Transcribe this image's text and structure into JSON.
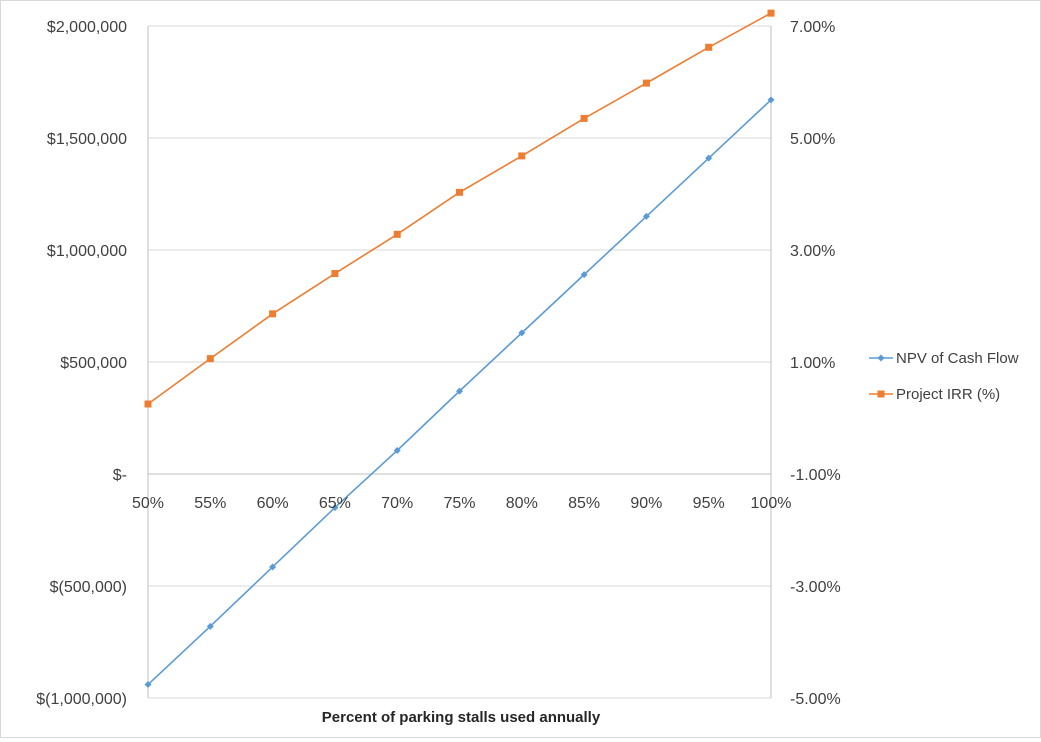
{
  "chart_data": {
    "type": "line",
    "title": "",
    "xlabel": "Percent of parking stalls used annually",
    "categories": [
      "50%",
      "55%",
      "60%",
      "65%",
      "70%",
      "75%",
      "80%",
      "85%",
      "90%",
      "95%",
      "100%"
    ],
    "y_left": {
      "min": -1000000,
      "max": 2000000,
      "step": 500000,
      "tick_labels": [
        "$(1,000,000)",
        "$(500,000)",
        "$-",
        "$500,000",
        "$1,000,000",
        "$1,500,000",
        "$2,000,000"
      ]
    },
    "y_right": {
      "min": -5,
      "max": 7,
      "step": 2,
      "top": 7.8,
      "tick_labels": [
        "-5.00%",
        "-3.00%",
        "-1.00%",
        "1.00%",
        "3.00%",
        "5.00%",
        "7.00%"
      ]
    },
    "series": [
      {
        "name": "NPV of Cash Flow",
        "axis": "left",
        "color": "#5b9bd5",
        "marker": "diamond",
        "values": [
          -940000,
          -680000,
          -415000,
          -150000,
          105000,
          370000,
          630000,
          890000,
          1150000,
          1410000,
          1670000
        ]
      },
      {
        "name": "Project IRR (%)",
        "axis": "right",
        "color": "#ed7d31",
        "marker": "square",
        "values": [
          0.25,
          1.06,
          1.86,
          2.58,
          3.28,
          4.03,
          4.68,
          5.35,
          5.98,
          6.62,
          7.23
        ]
      }
    ],
    "grid": true,
    "legend": "right"
  }
}
